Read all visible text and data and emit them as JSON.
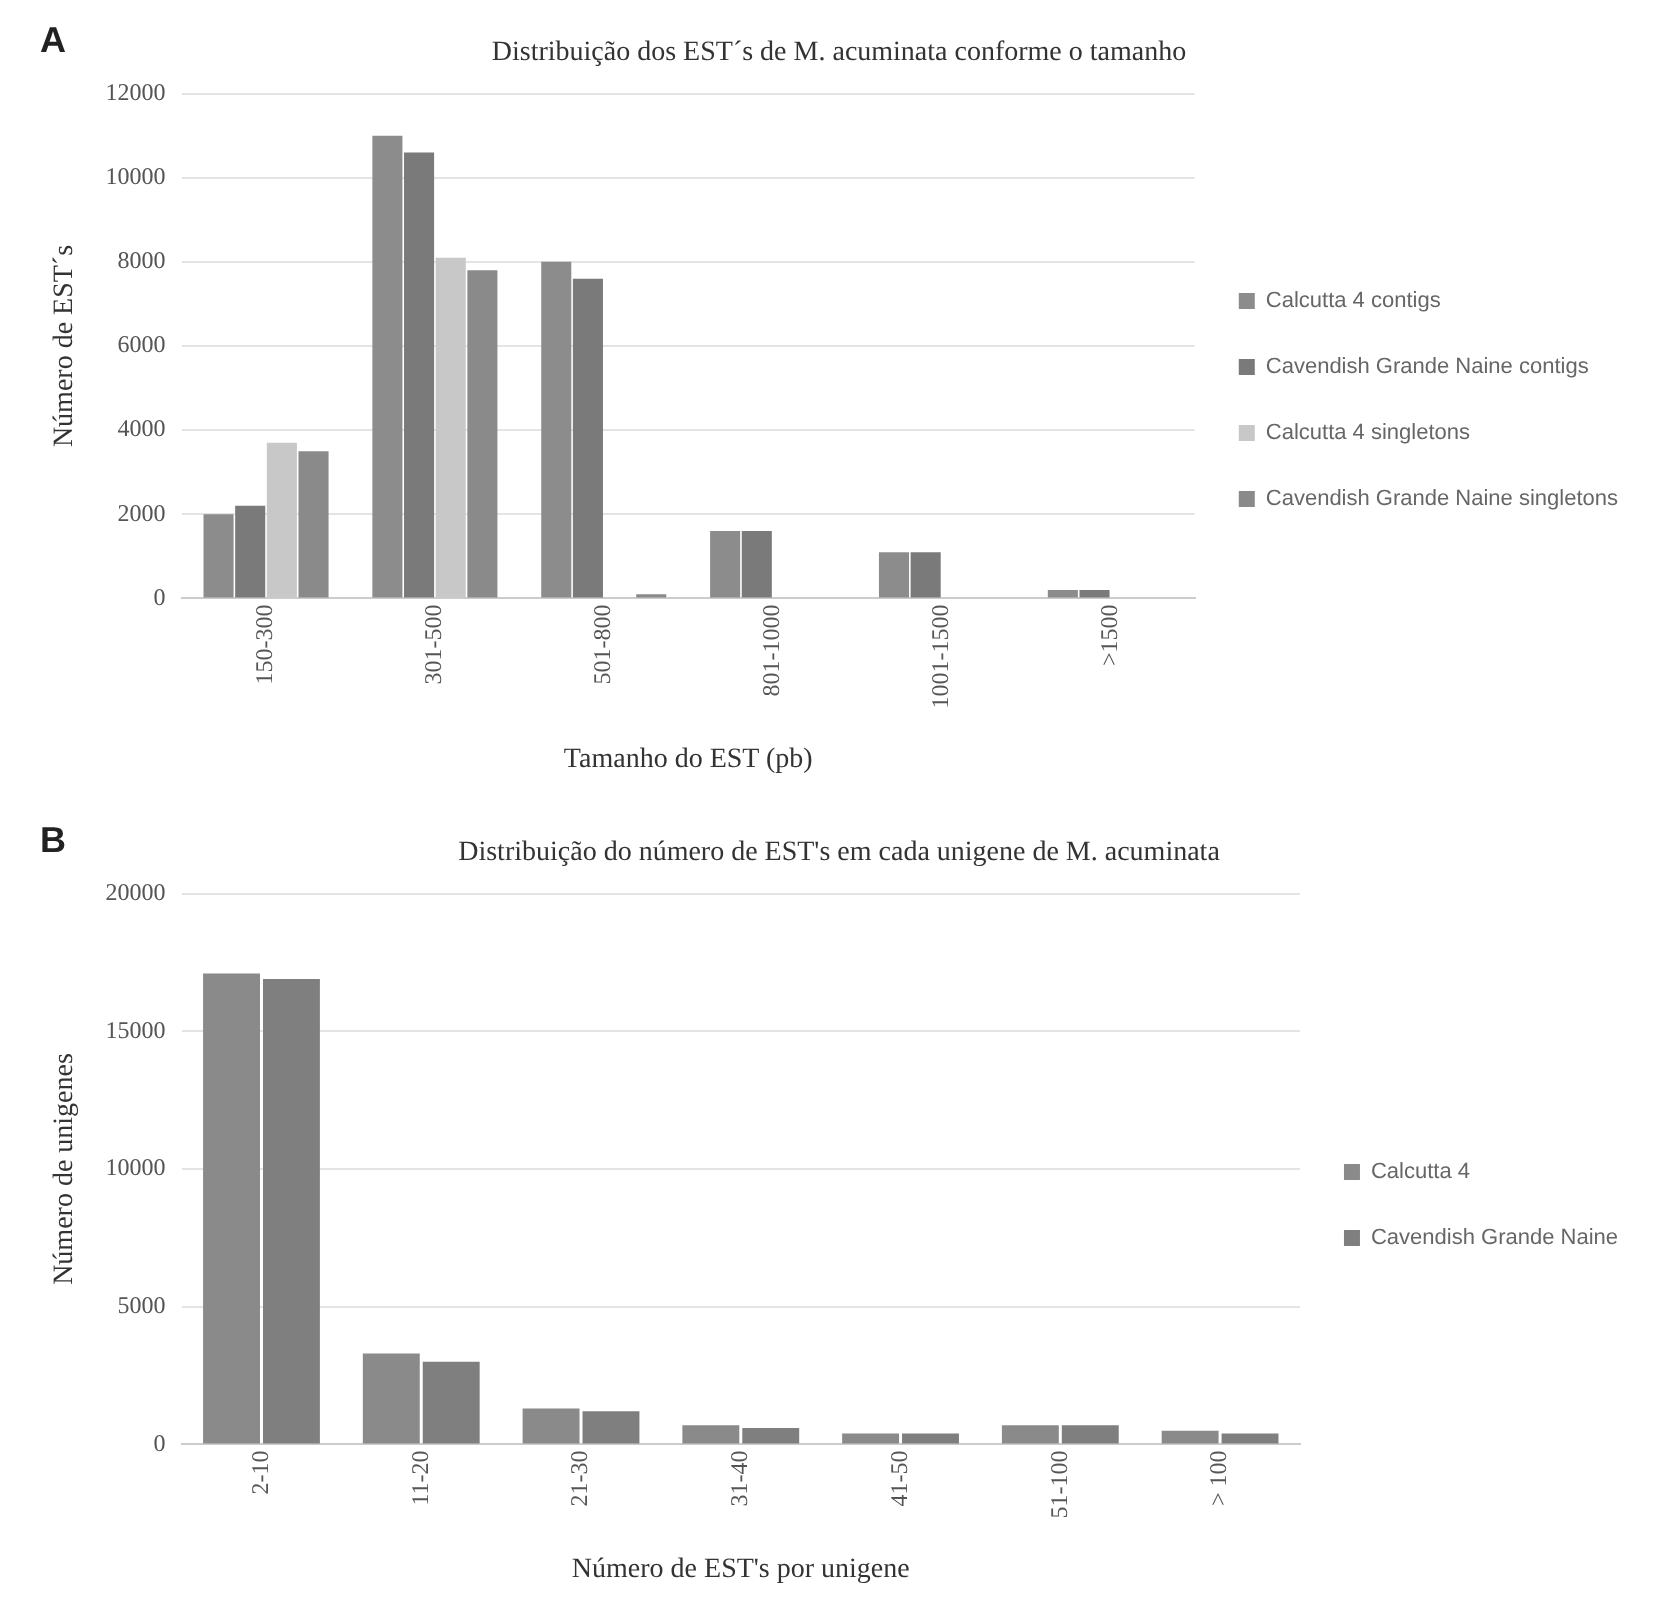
{
  "chart_data": [
    {
      "type": "bar",
      "title": "Distribuição dos EST´s de M. acuminata conforme o tamanho",
      "xlabel": "Tamanho do EST (pb)",
      "ylabel": "Número de EST´s",
      "annotations": [
        "A"
      ],
      "categories": [
        "150-300",
        "301-500",
        "501-800",
        "801-1000",
        "1001-1500",
        ">1500"
      ],
      "series": [
        {
          "name": "Calcutta 4 contigs",
          "color": "#8c8c8c",
          "values": [
            2000,
            11000,
            8000,
            1600,
            1100,
            200
          ]
        },
        {
          "name": "Cavendish Grande Naine contigs",
          "color": "#7a7a7a",
          "values": [
            2200,
            10600,
            7600,
            1600,
            1100,
            200
          ]
        },
        {
          "name": "Calcutta 4 singletons",
          "color": "#c8c8c8",
          "values": [
            3700,
            8100,
            null,
            0,
            0,
            0
          ]
        },
        {
          "name": "Cavendish Grande Naine singletons",
          "color": "#8a8a8a",
          "values": [
            3500,
            7800,
            100,
            0,
            0,
            0
          ]
        }
      ],
      "ylim": [
        0,
        12000
      ],
      "yticks": [
        0,
        2000,
        4000,
        6000,
        8000,
        10000,
        12000
      ],
      "grid": "y",
      "legend": "right"
    },
    {
      "type": "bar",
      "title": "Distribuição do número de EST's em cada unigene de M. acuminata",
      "xlabel": "Número de EST's por unigene",
      "ylabel": "Número de unigenes",
      "annotations": [
        "B"
      ],
      "categories": [
        "2-10",
        "11-20",
        "21-30",
        "31-40",
        "41-50",
        "51-100",
        "> 100"
      ],
      "series": [
        {
          "name": "Calcutta 4",
          "color": "#8a8a8a",
          "values": [
            17100,
            3300,
            1300,
            700,
            400,
            700,
            500
          ]
        },
        {
          "name": "Cavendish Grande Naine",
          "color": "#7f7f7f",
          "values": [
            16900,
            3000,
            1200,
            600,
            400,
            700,
            400
          ]
        }
      ],
      "ylim": [
        0,
        20000
      ],
      "yticks": [
        0,
        5000,
        10000,
        15000,
        20000
      ],
      "grid": "y",
      "legend": "right"
    }
  ]
}
